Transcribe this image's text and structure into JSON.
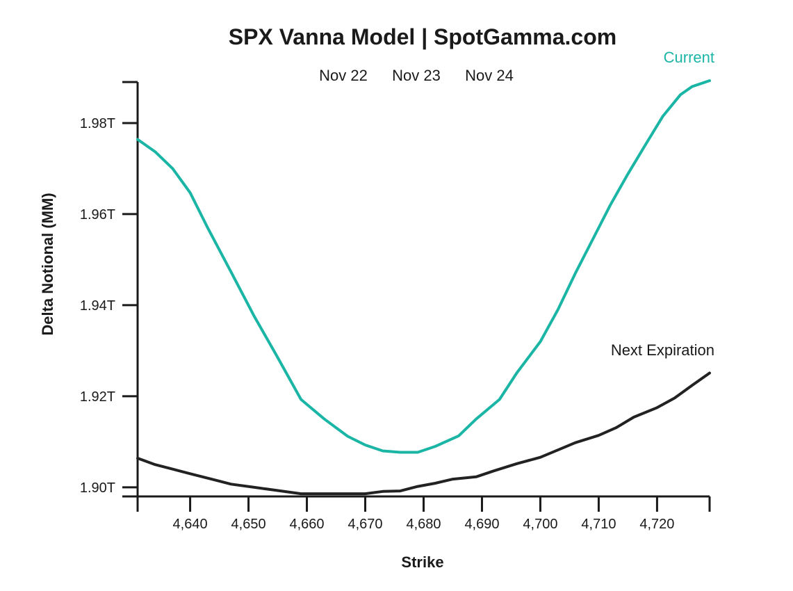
{
  "chart_data": {
    "type": "line",
    "title": "SPX Vanna Model | SpotGamma.com",
    "xlabel": "Strike",
    "ylabel": "Delta Notional (MM)",
    "legend": [
      "Nov 22",
      "Nov 23",
      "Nov 24"
    ],
    "legend_placement": "top-center",
    "xlim": [
      4631,
      4729
    ],
    "ylim": [
      1.898,
      1.989
    ],
    "x_ticks": [
      4640,
      4650,
      4660,
      4670,
      4680,
      4690,
      4700,
      4710,
      4720
    ],
    "x_tick_labels": [
      "4,640",
      "4,650",
      "4,660",
      "4,670",
      "4,680",
      "4,690",
      "4,700",
      "4,710",
      "4,720"
    ],
    "y_ticks": [
      1.9,
      1.92,
      1.94,
      1.96,
      1.98
    ],
    "y_tick_labels": [
      "1.90T",
      "1.92T",
      "1.94T",
      "1.96T",
      "1.98T"
    ],
    "grid": false,
    "series": [
      {
        "name": "Current",
        "color": "#1ab5a5",
        "x": [
          4631,
          4634,
          4637,
          4640,
          4643,
          4647,
          4651,
          4655,
          4659,
          4663,
          4667,
          4670,
          4673,
          4676,
          4679,
          4682,
          4686,
          4689,
          4693,
          4696,
          4700,
          4703,
          4706,
          4709,
          4712,
          4715,
          4718,
          4721,
          4724,
          4726,
          4729
        ],
        "values": [
          1.9764,
          1.9737,
          1.97,
          1.9647,
          1.957,
          1.9473,
          1.9375,
          1.9285,
          1.9193,
          1.915,
          1.9112,
          1.9093,
          1.908,
          1.9077,
          1.9077,
          1.909,
          1.9113,
          1.915,
          1.9193,
          1.9252,
          1.932,
          1.939,
          1.947,
          1.9545,
          1.962,
          1.9688,
          1.9752,
          1.9815,
          1.9862,
          1.988,
          1.9893
        ]
      },
      {
        "name": "Next Expiration",
        "color": "#222222",
        "x": [
          4631,
          4634,
          4637,
          4640,
          4644,
          4647,
          4651,
          4655,
          4659,
          4663,
          4667,
          4670,
          4673,
          4676,
          4679,
          4682,
          4685,
          4689,
          4692,
          4696,
          4700,
          4703,
          4706,
          4710,
          4713,
          4716,
          4720,
          4723,
          4726,
          4729
        ],
        "values": [
          1.9064,
          1.905,
          1.904,
          1.903,
          1.9017,
          1.9007,
          1.9,
          1.8993,
          1.8986,
          1.8986,
          1.8986,
          1.8986,
          1.8991,
          1.8992,
          1.9002,
          1.9009,
          1.9018,
          1.9023,
          1.9036,
          1.9052,
          1.9066,
          1.9082,
          1.9098,
          1.9114,
          1.9131,
          1.9154,
          1.9175,
          1.9196,
          1.9224,
          1.9251
        ]
      }
    ]
  }
}
